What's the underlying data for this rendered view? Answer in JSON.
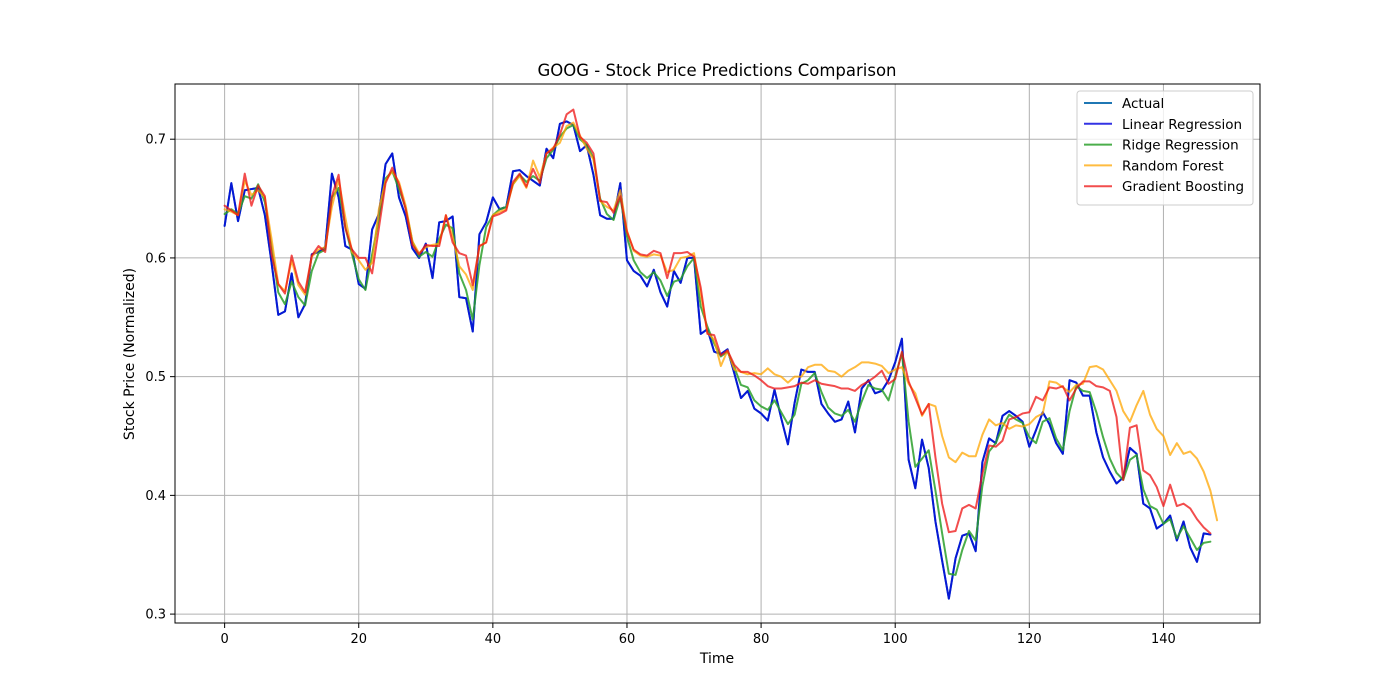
{
  "chart_data": {
    "type": "line",
    "title": "GOOG - Stock Price Predictions Comparison",
    "xlabel": "Time",
    "ylabel": "Stock Price (Normalized)",
    "xlim": [
      -7.4,
      154.4
    ],
    "ylim": [
      0.2925,
      0.7465
    ],
    "xticks": [
      0,
      20,
      40,
      60,
      80,
      100,
      120,
      140
    ],
    "yticks": [
      0.3,
      0.4,
      0.5,
      0.6,
      0.7
    ],
    "ytick_labels": [
      "0.3",
      "0.4",
      "0.5",
      "0.6",
      "0.7"
    ],
    "grid": true,
    "legend_position": "top-right",
    "series": [
      {
        "name": "Actual",
        "color": "#1f77b4",
        "opacity": 1,
        "start_x": 0,
        "values": [
          0.627,
          0.663,
          0.631,
          0.657,
          0.658,
          0.659,
          0.636,
          0.596,
          0.552,
          0.555,
          0.587,
          0.55,
          0.561,
          0.603,
          0.605,
          0.609,
          0.671,
          0.651,
          0.61,
          0.607,
          0.578,
          0.574,
          0.624,
          0.637,
          0.679,
          0.688,
          0.651,
          0.635,
          0.608,
          0.6,
          0.612,
          0.583,
          0.63,
          0.631,
          0.635,
          0.567,
          0.566,
          0.538,
          0.62,
          0.63,
          0.651,
          0.641,
          0.643,
          0.673,
          0.674,
          0.669,
          0.665,
          0.661,
          0.692,
          0.684,
          0.713,
          0.715,
          0.712,
          0.69,
          0.695,
          0.67,
          0.636,
          0.633,
          0.633,
          0.663,
          0.598,
          0.589,
          0.585,
          0.576,
          0.59,
          0.571,
          0.559,
          0.589,
          0.579,
          0.6,
          0.6,
          0.536,
          0.54,
          0.521,
          0.519,
          0.523,
          0.503,
          0.482,
          0.488,
          0.473,
          0.469,
          0.463,
          0.489,
          0.465,
          0.443,
          0.478,
          0.506,
          0.504,
          0.504,
          0.477,
          0.469,
          0.462,
          0.464,
          0.479,
          0.453,
          0.49,
          0.497,
          0.486,
          0.488,
          0.497,
          0.512,
          0.532,
          0.43,
          0.406,
          0.447,
          0.423,
          0.378,
          0.345,
          0.313,
          0.347,
          0.366,
          0.368,
          0.353,
          0.428,
          0.448,
          0.444,
          0.467,
          0.471,
          0.467,
          0.462,
          0.441,
          0.455,
          0.47,
          0.46,
          0.444,
          0.435,
          0.497,
          0.495,
          0.484,
          0.484,
          0.453,
          0.432,
          0.42,
          0.41,
          0.415,
          0.44,
          0.435,
          0.393,
          0.389,
          0.372,
          0.376,
          0.383,
          0.362,
          0.378,
          0.356,
          0.344,
          0.368,
          0.367
        ]
      },
      {
        "name": "Linear Regression",
        "color": "#0000dd",
        "opacity": 0.8,
        "start_x": 0,
        "values": [
          0.627,
          0.663,
          0.631,
          0.657,
          0.658,
          0.659,
          0.636,
          0.596,
          0.552,
          0.555,
          0.587,
          0.55,
          0.561,
          0.603,
          0.605,
          0.609,
          0.671,
          0.651,
          0.61,
          0.607,
          0.578,
          0.574,
          0.624,
          0.637,
          0.679,
          0.688,
          0.651,
          0.635,
          0.608,
          0.6,
          0.612,
          0.583,
          0.63,
          0.631,
          0.635,
          0.567,
          0.566,
          0.538,
          0.62,
          0.63,
          0.651,
          0.641,
          0.643,
          0.673,
          0.674,
          0.669,
          0.665,
          0.661,
          0.692,
          0.684,
          0.713,
          0.715,
          0.712,
          0.69,
          0.695,
          0.67,
          0.636,
          0.633,
          0.633,
          0.663,
          0.598,
          0.589,
          0.585,
          0.576,
          0.59,
          0.571,
          0.559,
          0.589,
          0.579,
          0.6,
          0.6,
          0.536,
          0.54,
          0.521,
          0.519,
          0.523,
          0.503,
          0.482,
          0.488,
          0.473,
          0.469,
          0.463,
          0.489,
          0.465,
          0.443,
          0.478,
          0.506,
          0.504,
          0.504,
          0.477,
          0.469,
          0.462,
          0.464,
          0.479,
          0.453,
          0.49,
          0.497,
          0.486,
          0.488,
          0.497,
          0.512,
          0.532,
          0.43,
          0.406,
          0.447,
          0.423,
          0.378,
          0.345,
          0.313,
          0.347,
          0.366,
          0.368,
          0.353,
          0.428,
          0.448,
          0.444,
          0.467,
          0.471,
          0.467,
          0.462,
          0.441,
          0.455,
          0.47,
          0.46,
          0.444,
          0.435,
          0.497,
          0.495,
          0.484,
          0.484,
          0.453,
          0.432,
          0.42,
          0.41,
          0.415,
          0.44,
          0.435,
          0.393,
          0.389,
          0.372,
          0.376,
          0.383,
          0.362,
          0.378,
          0.356,
          0.344,
          0.368,
          0.367
        ]
      },
      {
        "name": "Ridge Regression",
        "color": "#2ca02c",
        "opacity": 0.85,
        "start_x": 0,
        "values": [
          0.637,
          0.641,
          0.637,
          0.652,
          0.65,
          0.662,
          0.647,
          0.61,
          0.571,
          0.561,
          0.58,
          0.567,
          0.56,
          0.589,
          0.604,
          0.607,
          0.651,
          0.659,
          0.626,
          0.603,
          0.582,
          0.573,
          0.603,
          0.633,
          0.667,
          0.673,
          0.658,
          0.642,
          0.614,
          0.601,
          0.605,
          0.601,
          0.616,
          0.628,
          0.625,
          0.587,
          0.573,
          0.548,
          0.594,
          0.626,
          0.636,
          0.641,
          0.643,
          0.662,
          0.67,
          0.664,
          0.669,
          0.665,
          0.684,
          0.691,
          0.702,
          0.709,
          0.712,
          0.7,
          0.695,
          0.684,
          0.65,
          0.637,
          0.632,
          0.651,
          0.618,
          0.598,
          0.588,
          0.583,
          0.588,
          0.581,
          0.568,
          0.58,
          0.582,
          0.593,
          0.6,
          0.559,
          0.542,
          0.528,
          0.517,
          0.521,
          0.508,
          0.493,
          0.491,
          0.48,
          0.475,
          0.472,
          0.48,
          0.47,
          0.46,
          0.468,
          0.494,
          0.497,
          0.503,
          0.487,
          0.474,
          0.469,
          0.467,
          0.472,
          0.462,
          0.479,
          0.493,
          0.49,
          0.489,
          0.48,
          0.5,
          0.52,
          0.462,
          0.424,
          0.431,
          0.438,
          0.404,
          0.368,
          0.334,
          0.333,
          0.354,
          0.37,
          0.362,
          0.408,
          0.437,
          0.444,
          0.458,
          0.468,
          0.464,
          0.461,
          0.449,
          0.444,
          0.462,
          0.465,
          0.448,
          0.438,
          0.471,
          0.492,
          0.488,
          0.487,
          0.47,
          0.449,
          0.431,
          0.419,
          0.413,
          0.43,
          0.434,
          0.405,
          0.391,
          0.388,
          0.376,
          0.38,
          0.364,
          0.374,
          0.364,
          0.354,
          0.36,
          0.361
        ]
      },
      {
        "name": "Random Forest",
        "color": "#ffa500",
        "opacity": 0.75,
        "start_x": 0,
        "values": [
          0.641,
          0.639,
          0.636,
          0.665,
          0.653,
          0.657,
          0.651,
          0.616,
          0.578,
          0.572,
          0.598,
          0.577,
          0.569,
          0.601,
          0.607,
          0.609,
          0.643,
          0.666,
          0.634,
          0.605,
          0.598,
          0.59,
          0.596,
          0.641,
          0.665,
          0.673,
          0.664,
          0.644,
          0.614,
          0.604,
          0.609,
          0.611,
          0.612,
          0.636,
          0.618,
          0.593,
          0.586,
          0.573,
          0.61,
          0.613,
          0.636,
          0.639,
          0.641,
          0.662,
          0.669,
          0.659,
          0.682,
          0.668,
          0.688,
          0.693,
          0.697,
          0.711,
          0.714,
          0.703,
          0.692,
          0.683,
          0.648,
          0.643,
          0.64,
          0.657,
          0.623,
          0.606,
          0.602,
          0.601,
          0.603,
          0.602,
          0.588,
          0.59,
          0.6,
          0.601,
          0.604,
          0.57,
          0.537,
          0.531,
          0.509,
          0.522,
          0.506,
          0.504,
          0.502,
          0.503,
          0.502,
          0.507,
          0.502,
          0.5,
          0.495,
          0.5,
          0.5,
          0.508,
          0.51,
          0.51,
          0.505,
          0.504,
          0.5,
          0.505,
          0.508,
          0.512,
          0.512,
          0.511,
          0.509,
          0.503,
          0.506,
          0.508,
          0.494,
          0.486,
          0.467,
          0.477,
          0.475,
          0.45,
          0.432,
          0.428,
          0.436,
          0.433,
          0.433,
          0.451,
          0.464,
          0.459,
          0.461,
          0.456,
          0.459,
          0.458,
          0.46,
          0.466,
          0.469,
          0.496,
          0.495,
          0.491,
          0.487,
          0.493,
          0.494,
          0.508,
          0.509,
          0.506,
          0.497,
          0.488,
          0.471,
          0.462,
          0.476,
          0.488,
          0.468,
          0.456,
          0.45,
          0.434,
          0.444,
          0.435,
          0.437,
          0.431,
          0.42,
          0.404,
          0.379
        ]
      },
      {
        "name": "Gradient Boosting",
        "color": "#ee1111",
        "opacity": 0.75,
        "start_x": 0,
        "values": [
          0.644,
          0.64,
          0.636,
          0.671,
          0.644,
          0.661,
          0.652,
          0.603,
          0.578,
          0.57,
          0.602,
          0.58,
          0.571,
          0.602,
          0.61,
          0.605,
          0.652,
          0.67,
          0.625,
          0.607,
          0.6,
          0.6,
          0.587,
          0.625,
          0.663,
          0.676,
          0.662,
          0.641,
          0.611,
          0.603,
          0.611,
          0.61,
          0.61,
          0.636,
          0.613,
          0.604,
          0.602,
          0.577,
          0.61,
          0.613,
          0.635,
          0.637,
          0.64,
          0.664,
          0.671,
          0.66,
          0.675,
          0.663,
          0.688,
          0.692,
          0.704,
          0.721,
          0.725,
          0.702,
          0.697,
          0.688,
          0.648,
          0.647,
          0.638,
          0.652,
          0.622,
          0.607,
          0.603,
          0.602,
          0.606,
          0.604,
          0.583,
          0.604,
          0.604,
          0.605,
          0.601,
          0.575,
          0.536,
          0.535,
          0.518,
          0.522,
          0.51,
          0.504,
          0.504,
          0.501,
          0.497,
          0.492,
          0.49,
          0.49,
          0.491,
          0.492,
          0.495,
          0.494,
          0.497,
          0.494,
          0.493,
          0.492,
          0.49,
          0.49,
          0.488,
          0.493,
          0.496,
          0.5,
          0.505,
          0.494,
          0.498,
          0.521,
          0.496,
          0.482,
          0.468,
          0.477,
          0.432,
          0.393,
          0.369,
          0.37,
          0.389,
          0.392,
          0.389,
          0.418,
          0.442,
          0.441,
          0.446,
          0.464,
          0.466,
          0.469,
          0.47,
          0.483,
          0.48,
          0.491,
          0.49,
          0.492,
          0.48,
          0.49,
          0.496,
          0.496,
          0.492,
          0.491,
          0.488,
          0.466,
          0.413,
          0.457,
          0.459,
          0.421,
          0.417,
          0.407,
          0.391,
          0.409,
          0.391,
          0.393,
          0.389,
          0.38,
          0.373,
          0.368
        ]
      }
    ]
  }
}
